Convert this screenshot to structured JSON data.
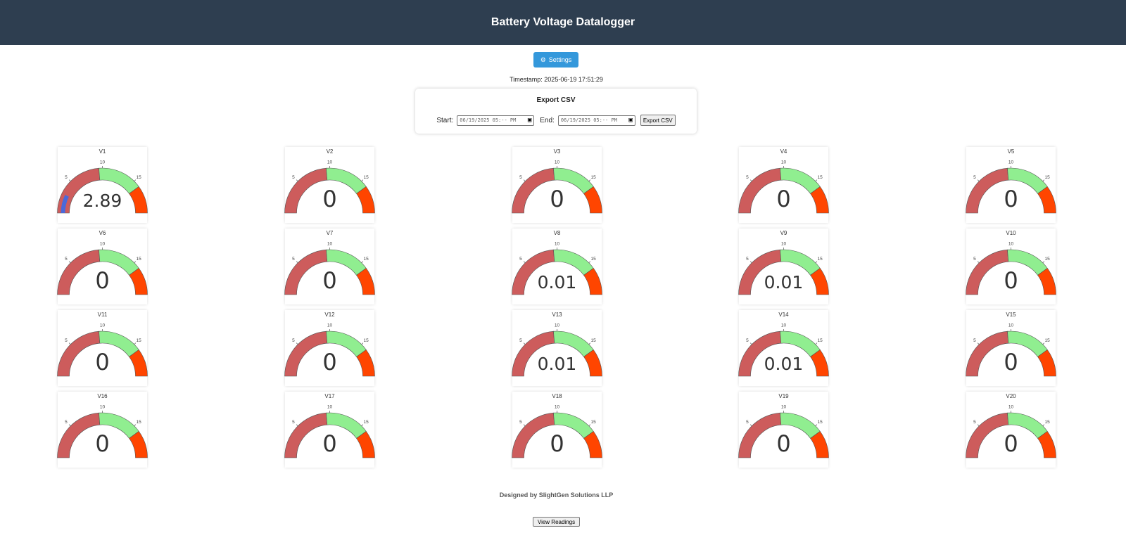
{
  "header": {
    "title": "Battery Voltage Datalogger"
  },
  "settings": {
    "label": "Settings",
    "icon": "gear-icon"
  },
  "timestamp": {
    "text": "Timestamp: 2025-06-19 17:51:29"
  },
  "export": {
    "title": "Export CSV",
    "start_label": "Start:",
    "start_value": "06/19/2025 05:-- PM",
    "end_label": "End:",
    "end_value": "06/19/2025 05:-- PM",
    "button_label": "Export CSV"
  },
  "gauges": {
    "min": 0,
    "max": 20,
    "tick_labels": [
      "5",
      "10",
      "15"
    ],
    "zone_colors": [
      "#cd5c5c",
      "#90ee90",
      "#ff4500"
    ],
    "zone_bounds": [
      0,
      9.5,
      16,
      20
    ],
    "needle_color": "#4a69d9",
    "items": [
      {
        "label": "V1",
        "value": "2.89"
      },
      {
        "label": "V2",
        "value": "0"
      },
      {
        "label": "V3",
        "value": "0"
      },
      {
        "label": "V4",
        "value": "0"
      },
      {
        "label": "V5",
        "value": "0"
      },
      {
        "label": "V6",
        "value": "0"
      },
      {
        "label": "V7",
        "value": "0"
      },
      {
        "label": "V8",
        "value": "0.01"
      },
      {
        "label": "V9",
        "value": "0.01"
      },
      {
        "label": "V10",
        "value": "0"
      },
      {
        "label": "V11",
        "value": "0"
      },
      {
        "label": "V12",
        "value": "0"
      },
      {
        "label": "V13",
        "value": "0.01"
      },
      {
        "label": "V14",
        "value": "0.01"
      },
      {
        "label": "V15",
        "value": "0"
      },
      {
        "label": "V16",
        "value": "0"
      },
      {
        "label": "V17",
        "value": "0"
      },
      {
        "label": "V18",
        "value": "0"
      },
      {
        "label": "V19",
        "value": "0"
      },
      {
        "label": "V20",
        "value": "0"
      }
    ]
  },
  "footer": {
    "text": "Designed by SlightGen Solutions LLP"
  },
  "view_readings": {
    "label": "View Readings"
  }
}
